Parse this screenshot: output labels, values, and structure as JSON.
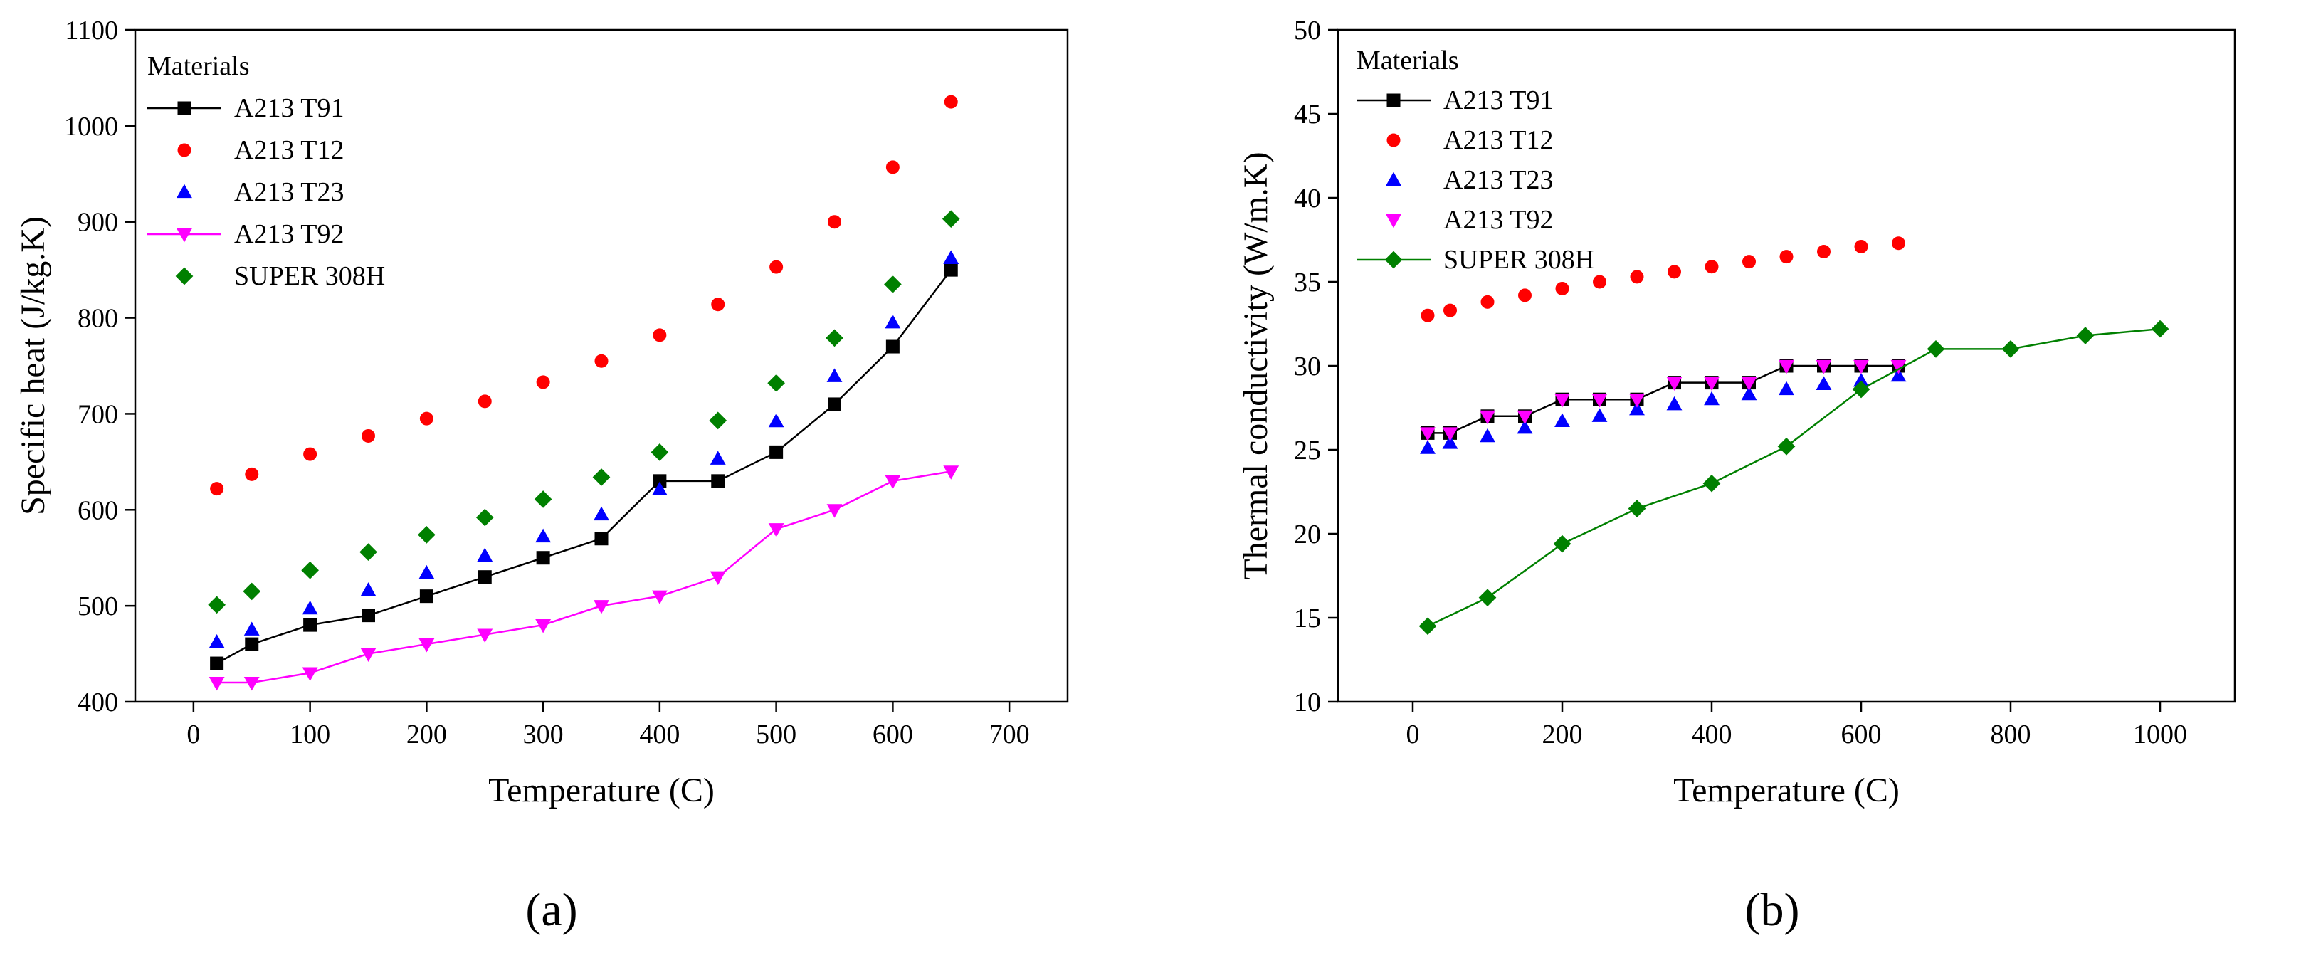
{
  "colors": {
    "A213 T91": "#000000",
    "A213 T12": "#ff0000",
    "A213 T23": "#0000ff",
    "A213 T92": "#ff00ff",
    "SUPER 308H": "#008000"
  },
  "panel_labels": [
    "(a)",
    "(b)"
  ],
  "chart_data": [
    {
      "type": "scatter",
      "xlabel": "Temperature (C)",
      "ylabel": "Specific heat (J/kg.K)",
      "xlim": [
        -50,
        750
      ],
      "ylim": [
        400,
        1100
      ],
      "xticks": [
        0,
        100,
        200,
        300,
        400,
        500,
        600,
        700
      ],
      "yticks": [
        400,
        500,
        600,
        700,
        800,
        900,
        1000,
        1100
      ],
      "legend_title": "Materials",
      "legend_position": "top-left",
      "grid": false,
      "series": [
        {
          "name": "A213 T91",
          "marker": "square",
          "line": true,
          "x": [
            20,
            50,
            100,
            150,
            200,
            250,
            300,
            350,
            400,
            450,
            500,
            550,
            600,
            650
          ],
          "y": [
            440,
            460,
            480,
            490,
            510,
            530,
            550,
            570,
            630,
            630,
            660,
            710,
            770,
            850
          ]
        },
        {
          "name": "A213 T12",
          "marker": "circle",
          "line": false,
          "x": [
            20,
            50,
            100,
            150,
            200,
            250,
            300,
            350,
            400,
            450,
            500,
            550,
            600,
            650
          ],
          "y": [
            622,
            637,
            658,
            677,
            695,
            713,
            733,
            755,
            782,
            814,
            853,
            900,
            957,
            1025
          ]
        },
        {
          "name": "A213 T23",
          "marker": "triangle-up",
          "line": false,
          "x": [
            20,
            50,
            100,
            150,
            200,
            250,
            300,
            350,
            400,
            450,
            500,
            550,
            600,
            650
          ],
          "y": [
            462,
            475,
            497,
            516,
            534,
            552,
            572,
            595,
            621,
            653,
            692,
            739,
            795,
            862
          ]
        },
        {
          "name": "A213 T92",
          "marker": "triangle-down",
          "line": true,
          "x": [
            20,
            50,
            100,
            150,
            200,
            250,
            300,
            350,
            400,
            450,
            500,
            550,
            600,
            650
          ],
          "y": [
            420,
            420,
            430,
            450,
            460,
            470,
            480,
            500,
            510,
            530,
            580,
            600,
            630,
            640
          ]
        },
        {
          "name": "SUPER 308H",
          "marker": "diamond",
          "line": false,
          "x": [
            20,
            50,
            100,
            150,
            200,
            250,
            300,
            350,
            400,
            450,
            500,
            550,
            600,
            650
          ],
          "y": [
            501,
            515,
            537,
            556,
            574,
            592,
            611,
            634,
            660,
            693,
            732,
            779,
            835,
            903
          ]
        }
      ]
    },
    {
      "type": "scatter",
      "xlabel": "Temperature (C)",
      "ylabel": "Thermal conductivity (W/m.K)",
      "xlim": [
        -100,
        1100
      ],
      "ylim": [
        10,
        50
      ],
      "xticks": [
        0,
        200,
        400,
        600,
        800,
        1000
      ],
      "yticks": [
        10,
        15,
        20,
        25,
        30,
        35,
        40,
        45,
        50
      ],
      "legend_title": "Materials",
      "legend_position": "top-left",
      "grid": false,
      "series": [
        {
          "name": "A213 T91",
          "marker": "square",
          "line": true,
          "x": [
            20,
            50,
            100,
            150,
            200,
            250,
            300,
            350,
            400,
            450,
            500,
            550,
            600,
            650
          ],
          "y": [
            26,
            26,
            27,
            27,
            28,
            28,
            28,
            29,
            29,
            29,
            30,
            30,
            30,
            30
          ]
        },
        {
          "name": "A213 T12",
          "marker": "circle",
          "line": false,
          "x": [
            20,
            50,
            100,
            150,
            200,
            250,
            300,
            350,
            400,
            450,
            500,
            550,
            600,
            650
          ],
          "y": [
            33.0,
            33.3,
            33.8,
            34.2,
            34.6,
            35.0,
            35.3,
            35.6,
            35.9,
            36.2,
            36.5,
            36.8,
            37.1,
            37.3
          ]
        },
        {
          "name": "A213 T23",
          "marker": "triangle-up",
          "line": false,
          "x": [
            20,
            50,
            100,
            150,
            200,
            250,
            300,
            350,
            400,
            450,
            500,
            550,
            600,
            650
          ],
          "y": [
            25.1,
            25.4,
            25.8,
            26.3,
            26.7,
            27.0,
            27.4,
            27.7,
            28.0,
            28.3,
            28.6,
            28.9,
            29.1,
            29.4
          ]
        },
        {
          "name": "A213 T92",
          "marker": "triangle-down",
          "line": false,
          "x": [
            20,
            50,
            100,
            150,
            200,
            250,
            300,
            350,
            400,
            450,
            500,
            550,
            600,
            650
          ],
          "y": [
            26,
            26,
            27,
            27,
            28,
            28,
            28,
            29,
            29,
            29,
            30,
            30,
            30,
            30
          ]
        },
        {
          "name": "SUPER 308H",
          "marker": "diamond",
          "line": true,
          "x": [
            20,
            100,
            200,
            300,
            400,
            500,
            600,
            700,
            800,
            900,
            1000
          ],
          "y": [
            14.5,
            16.2,
            19.4,
            21.5,
            23.0,
            25.2,
            28.6,
            31.0,
            31.0,
            31.8,
            32.2
          ]
        }
      ]
    }
  ]
}
